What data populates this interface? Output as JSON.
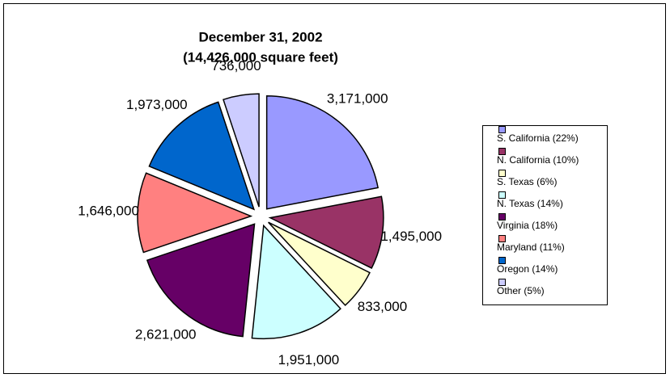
{
  "chart_data": {
    "type": "pie",
    "title": "December 31, 2002",
    "subtitle": "(14,426,000 square feet)",
    "categories": [
      "S. California (22%)",
      "N. California (10%)",
      "S. Texas (6%)",
      "N. Texas (14%)",
      "Virginia (18%)",
      "Maryland (11%)",
      "Oregon (14%)",
      "Other (5%)"
    ],
    "values": [
      3171000,
      1495000,
      833000,
      1951000,
      2621000,
      1646000,
      1973000,
      736000
    ],
    "value_labels": [
      "3,171,000",
      "1,495,000",
      "833,000",
      "1,951,000",
      "2,621,000",
      "1,646,000",
      "1,973,000",
      "736,000"
    ],
    "colors": [
      "#9999ff",
      "#993366",
      "#ffffcc",
      "#ccffff",
      "#660066",
      "#ff8080",
      "#0066cc",
      "#ccccff"
    ],
    "legend": "right"
  }
}
